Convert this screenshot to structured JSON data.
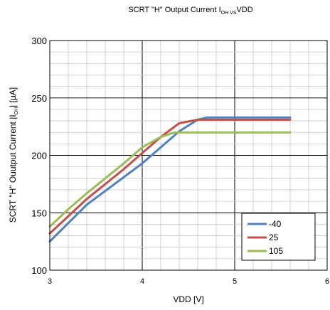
{
  "chart_data": {
    "type": "line",
    "title": {
      "prefix": "SCRT \"H\" Output Current I",
      "sub": "OH VS",
      "suffix": "VDD"
    },
    "xlabel": "VDD [V]",
    "ylabel": {
      "prefix": "SCRT \"H\" Ouutput Current |I",
      "sub": "OH",
      "suffix": "| [µA]"
    },
    "xlim": [
      3,
      6
    ],
    "ylim": [
      100,
      300
    ],
    "x_ticks": [
      "3",
      "4",
      "5",
      "6"
    ],
    "y_ticks": [
      "100",
      "150",
      "200",
      "250",
      "300"
    ],
    "grid": "major and minor",
    "legend_position": "bottom-right",
    "series": [
      {
        "name": "-40",
        "color": "#4F81BD",
        "points": [
          [
            3.0,
            125
          ],
          [
            3.2,
            141
          ],
          [
            3.4,
            157
          ],
          [
            3.6,
            169
          ],
          [
            3.8,
            181
          ],
          [
            4.0,
            193
          ],
          [
            4.2,
            207
          ],
          [
            4.4,
            221
          ],
          [
            4.6,
            231
          ],
          [
            4.7,
            233
          ],
          [
            5.0,
            233
          ],
          [
            5.3,
            233
          ],
          [
            5.6,
            233
          ]
        ]
      },
      {
        "name": "25",
        "color": "#C0504D",
        "points": [
          [
            3.0,
            132
          ],
          [
            3.2,
            147
          ],
          [
            3.4,
            162
          ],
          [
            3.6,
            175
          ],
          [
            3.8,
            188
          ],
          [
            4.0,
            202
          ],
          [
            4.2,
            216
          ],
          [
            4.4,
            228
          ],
          [
            4.6,
            231
          ],
          [
            5.0,
            231
          ],
          [
            5.3,
            231
          ],
          [
            5.6,
            231
          ]
        ]
      },
      {
        "name": "105",
        "color": "#9BBB59",
        "points": [
          [
            3.0,
            138
          ],
          [
            3.2,
            153
          ],
          [
            3.4,
            167
          ],
          [
            3.6,
            180
          ],
          [
            3.8,
            193
          ],
          [
            4.0,
            207
          ],
          [
            4.2,
            216
          ],
          [
            4.35,
            220
          ],
          [
            4.6,
            220
          ],
          [
            5.0,
            220
          ],
          [
            5.3,
            220
          ],
          [
            5.6,
            220
          ]
        ]
      }
    ]
  }
}
